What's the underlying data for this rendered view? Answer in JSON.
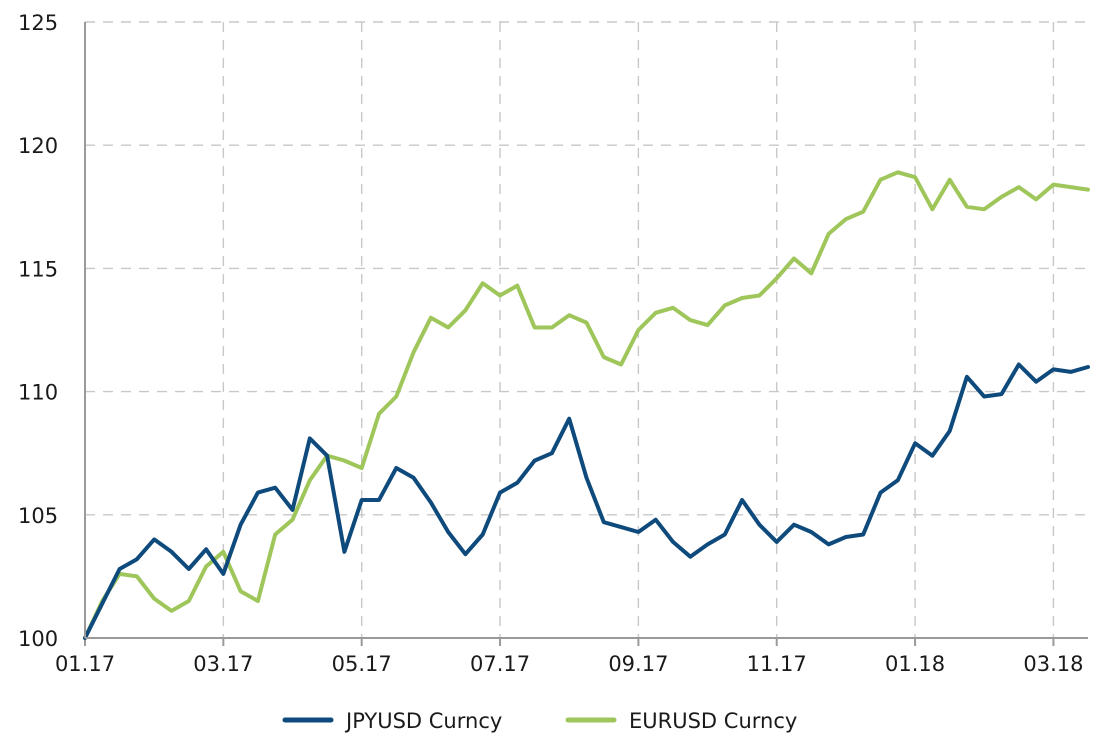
{
  "chart_data": {
    "type": "line",
    "title": "",
    "xlabel": "",
    "ylabel": "",
    "ylim": [
      100,
      125
    ],
    "yticks": [
      100,
      105,
      110,
      115,
      120,
      125
    ],
    "xtick_labels": [
      "01.17",
      "03.17",
      "05.17",
      "07.17",
      "09.17",
      "11.17",
      "01.18",
      "03.18"
    ],
    "xtick_positions": [
      0,
      2,
      4,
      6,
      8,
      10,
      12,
      14
    ],
    "xlim": [
      0,
      14.5
    ],
    "grid": "dashed",
    "legend_position": "bottom",
    "x": [
      0,
      0.25,
      0.5,
      0.75,
      1,
      1.25,
      1.5,
      1.75,
      2,
      2.25,
      2.5,
      2.75,
      3,
      3.25,
      3.5,
      3.75,
      4,
      4.25,
      4.5,
      4.75,
      5,
      5.25,
      5.5,
      5.75,
      6,
      6.25,
      6.5,
      6.75,
      7,
      7.25,
      7.5,
      7.75,
      8,
      8.25,
      8.5,
      8.75,
      9,
      9.25,
      9.5,
      9.75,
      10,
      10.25,
      10.5,
      10.75,
      11,
      11.25,
      11.5,
      11.75,
      12,
      12.25,
      12.5,
      12.75,
      13,
      13.25,
      13.5,
      13.75,
      14,
      14.25,
      14.5
    ],
    "series": [
      {
        "name": "JPYUSD  Curncy",
        "color": "#0f4a7c",
        "values": [
          100.0,
          101.4,
          102.8,
          103.2,
          104.0,
          103.5,
          102.8,
          103.6,
          102.6,
          104.6,
          105.9,
          106.1,
          105.2,
          108.1,
          107.4,
          103.5,
          105.6,
          105.6,
          106.9,
          106.5,
          105.5,
          104.3,
          103.4,
          104.2,
          105.9,
          106.3,
          107.2,
          107.5,
          108.9,
          106.5,
          104.7,
          104.5,
          104.3,
          104.8,
          103.9,
          103.3,
          103.8,
          104.2,
          105.6,
          104.6,
          103.9,
          104.6,
          104.3,
          103.8,
          104.1,
          104.2,
          105.9,
          106.4,
          107.9,
          107.4,
          108.4,
          110.6,
          109.8,
          109.9,
          111.1,
          110.4,
          110.9,
          110.8,
          111.0
        ]
      },
      {
        "name": "EURUSD Curncy",
        "color": "#9fc65a",
        "values": [
          100.0,
          101.5,
          102.6,
          102.5,
          101.6,
          101.1,
          101.5,
          102.9,
          103.5,
          101.9,
          101.5,
          104.2,
          104.8,
          106.4,
          107.4,
          107.2,
          106.9,
          109.1,
          109.8,
          111.6,
          113.0,
          112.6,
          113.3,
          114.4,
          113.9,
          114.3,
          112.6,
          112.6,
          113.1,
          112.8,
          111.4,
          111.1,
          112.5,
          113.2,
          113.4,
          112.9,
          112.7,
          113.5,
          113.8,
          113.9,
          114.6,
          115.4,
          114.8,
          116.4,
          117.0,
          117.3,
          118.6,
          118.9,
          118.7,
          117.4,
          118.6,
          117.5,
          117.4,
          117.9,
          118.3,
          117.8,
          118.4,
          118.3,
          118.2
        ]
      }
    ]
  }
}
